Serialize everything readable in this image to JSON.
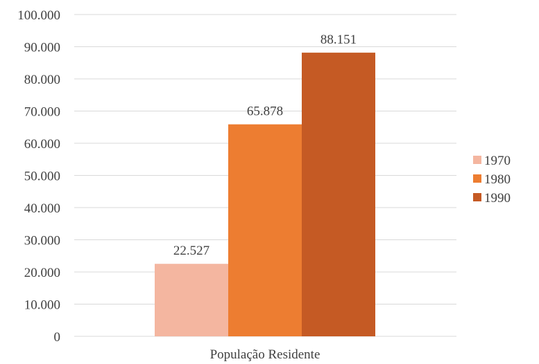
{
  "chart_data": {
    "type": "bar",
    "categories": [
      "População Residente"
    ],
    "series": [
      {
        "name": "1970",
        "values": [
          22527
        ],
        "label": "22.527",
        "color": "#F4B6A0"
      },
      {
        "name": "1980",
        "values": [
          65878
        ],
        "label": "65.878",
        "color": "#ED7D31"
      },
      {
        "name": "1990",
        "values": [
          88151
        ],
        "label": "88.151",
        "color": "#C55A24"
      }
    ],
    "title": "",
    "xlabel": "",
    "ylabel": "",
    "ylim": [
      0,
      100000
    ],
    "yticks": [
      0,
      10000,
      20000,
      30000,
      40000,
      50000,
      60000,
      70000,
      80000,
      90000,
      100000
    ],
    "ytick_labels": [
      "0",
      "10.000",
      "20.000",
      "30.000",
      "40.000",
      "50.000",
      "60.000",
      "70.000",
      "80.000",
      "90.000",
      "100.000"
    ],
    "grid": true,
    "gridline_color": "#D9D9D9",
    "legend_position": "right"
  }
}
